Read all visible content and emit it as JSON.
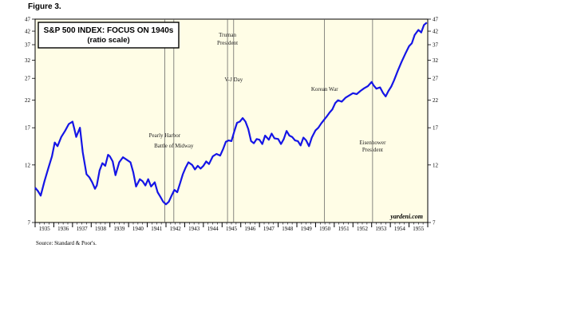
{
  "figure_label": "Figure 3.",
  "source_note": "Source: Standard & Poor's.",
  "colors": {
    "background": "#fffde6",
    "line": "#1515e6",
    "event_line": "#555555",
    "axis": "#000000"
  },
  "chart_data": {
    "type": "line",
    "title": "S&P 500 INDEX: FOCUS ON 1940s",
    "subtitle": "(ratio scale)",
    "watermark": "yardeni.com",
    "y_scale": "log",
    "ylim": [
      7,
      47
    ],
    "y_ticks": [
      7,
      12,
      17,
      22,
      27,
      32,
      37,
      42,
      47
    ],
    "xlim": [
      1935.0,
      1956.0
    ],
    "x_tick_labels": [
      "1935",
      "1936",
      "1937",
      "1938",
      "1939",
      "1940",
      "1941",
      "1942",
      "1943",
      "1944",
      "1945",
      "1946",
      "1947",
      "1948",
      "1949",
      "1950",
      "1951",
      "1952",
      "1953",
      "1954",
      "1955"
    ],
    "grid": false,
    "events": [
      {
        "label_lines": [
          "Pearly Harbor"
        ],
        "x": 1941.93
      },
      {
        "label_lines": [
          "Battle of Midway"
        ],
        "x": 1942.42
      },
      {
        "label_lines": [
          "Truman",
          "President"
        ],
        "x": 1945.29
      },
      {
        "label_lines": [
          "V-J Day"
        ],
        "x": 1945.62
      },
      {
        "label_lines": [
          "Korean War"
        ],
        "x": 1950.48
      },
      {
        "label_lines": [
          "Eisenhower",
          "President"
        ],
        "x": 1953.05
      }
    ],
    "series": [
      {
        "x": [
          1935.0,
          1935.15,
          1935.3,
          1935.5,
          1935.7,
          1935.9,
          1936.05,
          1936.2,
          1936.4,
          1936.6,
          1936.8,
          1937.0,
          1937.1,
          1937.2,
          1937.4,
          1937.55,
          1937.75,
          1937.9,
          1938.05,
          1938.2,
          1938.3,
          1938.45,
          1938.6,
          1938.75,
          1938.9,
          1939.0,
          1939.15,
          1939.3,
          1939.5,
          1939.7,
          1939.9,
          1940.1,
          1940.25,
          1940.4,
          1940.6,
          1940.75,
          1940.9,
          1941.05,
          1941.2,
          1941.4,
          1941.55,
          1941.7,
          1941.85,
          1942.0,
          1942.15,
          1942.3,
          1942.45,
          1942.6,
          1942.75,
          1942.9,
          1943.05,
          1943.2,
          1943.4,
          1943.55,
          1943.7,
          1943.85,
          1944.0,
          1944.15,
          1944.3,
          1944.5,
          1944.7,
          1944.9,
          1945.05,
          1945.2,
          1945.35,
          1945.5,
          1945.65,
          1945.8,
          1945.95,
          1946.1,
          1946.25,
          1946.4,
          1946.55,
          1946.7,
          1946.85,
          1947.0,
          1947.15,
          1947.3,
          1947.5,
          1947.65,
          1947.8,
          1948.0,
          1948.15,
          1948.3,
          1948.45,
          1948.6,
          1948.75,
          1948.9,
          1949.05,
          1949.2,
          1949.35,
          1949.5,
          1949.65,
          1949.8,
          1950.0,
          1950.15,
          1950.3,
          1950.45,
          1950.6,
          1950.75,
          1950.9,
          1951.05,
          1951.2,
          1951.4,
          1951.6,
          1951.8,
          1952.0,
          1952.2,
          1952.4,
          1952.6,
          1952.8,
          1953.0,
          1953.1,
          1953.25,
          1953.45,
          1953.6,
          1953.75,
          1953.9,
          1954.05,
          1954.2,
          1954.4,
          1954.6,
          1954.8,
          1955.0,
          1955.15,
          1955.3,
          1955.5,
          1955.65,
          1955.8,
          1955.95
        ],
        "values": [
          9.7,
          9.4,
          9.0,
          10.3,
          11.6,
          13.0,
          14.8,
          14.3,
          15.6,
          16.5,
          17.6,
          18.0,
          16.8,
          15.6,
          17.0,
          13.5,
          11.0,
          10.7,
          10.2,
          9.6,
          9.9,
          11.4,
          12.2,
          11.9,
          13.2,
          13.0,
          12.4,
          10.9,
          12.3,
          12.9,
          12.6,
          12.3,
          11.2,
          9.8,
          10.5,
          10.3,
          9.9,
          10.5,
          9.8,
          10.2,
          9.3,
          8.9,
          8.5,
          8.3,
          8.5,
          9.0,
          9.5,
          9.3,
          10.1,
          11.0,
          11.7,
          12.3,
          12.0,
          11.5,
          11.9,
          11.6,
          11.9,
          12.4,
          12.1,
          13.0,
          13.3,
          13.1,
          13.9,
          14.9,
          15.1,
          15.0,
          16.4,
          17.8,
          18.0,
          18.6,
          18.0,
          16.8,
          15.0,
          14.7,
          15.3,
          15.2,
          14.6,
          15.8,
          15.2,
          16.1,
          15.4,
          15.3,
          14.6,
          15.3,
          16.5,
          15.8,
          15.6,
          15.1,
          15.0,
          14.4,
          15.5,
          15.1,
          14.3,
          15.5,
          16.6,
          17.0,
          17.7,
          18.3,
          18.9,
          19.6,
          20.2,
          21.4,
          22.0,
          21.7,
          22.5,
          23.0,
          23.5,
          23.3,
          24.0,
          24.6,
          25.1,
          26.1,
          25.3,
          24.5,
          24.8,
          23.6,
          22.8,
          24.0,
          25.0,
          26.5,
          29.0,
          31.5,
          34.0,
          36.5,
          37.5,
          40.5,
          42.5,
          41.5,
          44.5,
          45.5
        ]
      }
    ]
  }
}
